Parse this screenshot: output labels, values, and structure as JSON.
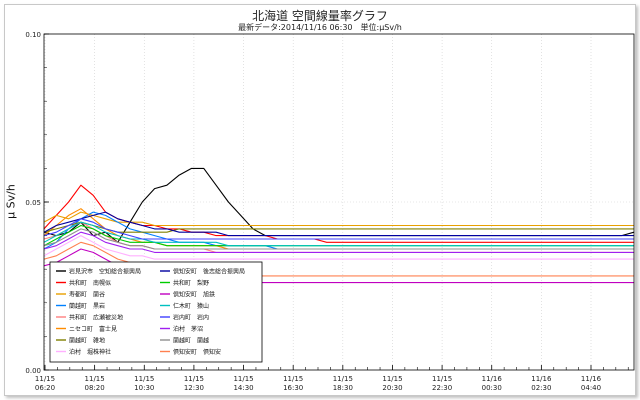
{
  "title": "北海道 空間線量率グラフ",
  "subtitle": "最新データ:2014/11/16 06:30　単位:μSv/h",
  "colors": {
    "axis": "#000000",
    "grid": "#cfcfcf",
    "background": "#ffffff"
  },
  "chart_data": {
    "type": "line",
    "ylabel": "μ Sv/h",
    "ylim": [
      0,
      0.1
    ],
    "yticks": [
      "0.00",
      "0.05",
      "0.10"
    ],
    "grid": true,
    "legend_placement": "lower-left",
    "x_tick_labels": [
      [
        "11/15",
        "06:20"
      ],
      [
        "11/15",
        "08:20"
      ],
      [
        "11/15",
        "10:30"
      ],
      [
        "11/15",
        "12:30"
      ],
      [
        "11/15",
        "14:30"
      ],
      [
        "11/15",
        "16:30"
      ],
      [
        "11/15",
        "18:30"
      ],
      [
        "11/15",
        "20:30"
      ],
      [
        "11/15",
        "22:30"
      ],
      [
        "11/16",
        "00:30"
      ],
      [
        "11/16",
        "02:30"
      ],
      [
        "11/16",
        "04:40"
      ]
    ],
    "series": [
      {
        "name": "岩見沢市　空知総合振興局",
        "color": "#000000",
        "values": [
          0.041,
          0.04,
          0.041,
          0.044,
          0.04,
          0.041,
          0.038,
          0.044,
          0.05,
          0.054,
          0.055,
          0.058,
          0.06,
          0.06,
          0.055,
          0.05,
          0.046,
          0.042,
          0.04,
          0.04,
          0.04,
          0.04,
          0.04,
          0.04,
          0.04,
          0.04,
          0.04,
          0.04,
          0.04,
          0.04,
          0.04,
          0.04,
          0.04,
          0.04,
          0.04,
          0.04,
          0.04,
          0.04,
          0.04,
          0.04,
          0.04,
          0.04,
          0.04,
          0.04,
          0.04,
          0.04,
          0.04,
          0.04,
          0.041
        ]
      },
      {
        "name": "共和町　南幌似",
        "color": "#ff0000",
        "values": [
          0.042,
          0.046,
          0.05,
          0.055,
          0.052,
          0.047,
          0.045,
          0.044,
          0.043,
          0.043,
          0.042,
          0.042,
          0.041,
          0.041,
          0.04,
          0.04,
          0.04,
          0.04,
          0.04,
          0.039,
          0.039,
          0.039,
          0.039,
          0.038,
          0.038,
          0.038,
          0.038,
          0.038,
          0.038,
          0.038,
          0.038,
          0.038,
          0.038,
          0.038,
          0.038,
          0.038,
          0.038,
          0.038,
          0.038,
          0.038,
          0.038,
          0.038,
          0.038,
          0.038,
          0.038,
          0.038,
          0.038,
          0.038,
          0.038
        ]
      },
      {
        "name": "寿都町　蘭谷",
        "color": "#e8a000",
        "values": [
          0.044,
          0.046,
          0.045,
          0.047,
          0.046,
          0.045,
          0.044,
          0.044,
          0.044,
          0.043,
          0.043,
          0.043,
          0.043,
          0.043,
          0.043,
          0.043,
          0.043,
          0.043,
          0.043,
          0.043,
          0.043,
          0.043,
          0.043,
          0.043,
          0.043,
          0.043,
          0.043,
          0.043,
          0.043,
          0.043,
          0.043,
          0.043,
          0.043,
          0.043,
          0.043,
          0.043,
          0.043,
          0.043,
          0.043,
          0.043,
          0.043,
          0.043,
          0.043,
          0.043,
          0.043,
          0.043,
          0.043,
          0.043,
          0.043
        ]
      },
      {
        "name": "蘭越町　黒岩",
        "color": "#0080ff",
        "values": [
          0.036,
          0.038,
          0.042,
          0.045,
          0.047,
          0.046,
          0.044,
          0.042,
          0.041,
          0.04,
          0.039,
          0.038,
          0.038,
          0.038,
          0.037,
          0.037,
          0.037,
          0.037,
          0.037,
          0.036,
          0.036,
          0.036,
          0.036,
          0.036,
          0.036,
          0.036,
          0.036,
          0.036,
          0.036,
          0.036,
          0.036,
          0.036,
          0.036,
          0.036,
          0.036,
          0.036,
          0.036,
          0.036,
          0.036,
          0.036,
          0.036,
          0.036,
          0.036,
          0.036,
          0.036,
          0.036,
          0.036,
          0.036,
          0.036
        ]
      },
      {
        "name": "共和町　広瀬被災地",
        "color": "#ff8080",
        "values": [
          0.039,
          0.04,
          0.042,
          0.044,
          0.042,
          0.04,
          0.038,
          0.037,
          0.037,
          0.036,
          0.036,
          0.036,
          0.036,
          0.036,
          0.035,
          0.035,
          0.035,
          0.035,
          0.035,
          0.035,
          0.035,
          0.035,
          0.035,
          0.035,
          0.035,
          0.035,
          0.035,
          0.035,
          0.035,
          0.035,
          0.035,
          0.035,
          0.035,
          0.035,
          0.035,
          0.035,
          0.035,
          0.035,
          0.035,
          0.035,
          0.035,
          0.035,
          0.035,
          0.035,
          0.035,
          0.035,
          0.035,
          0.035,
          0.035
        ]
      },
      {
        "name": "ニセコ町　富士見",
        "color": "#ff8c00",
        "values": [
          0.04,
          0.043,
          0.046,
          0.048,
          0.045,
          0.042,
          0.04,
          0.039,
          0.038,
          0.038,
          0.037,
          0.037,
          0.037,
          0.037,
          0.037,
          0.036,
          0.036,
          0.036,
          0.036,
          0.036,
          0.036,
          0.036,
          0.036,
          0.036,
          0.036,
          0.036,
          0.036,
          0.036,
          0.036,
          0.036,
          0.036,
          0.036,
          0.036,
          0.036,
          0.036,
          0.036,
          0.036,
          0.036,
          0.036,
          0.036,
          0.036,
          0.036,
          0.036,
          0.036,
          0.036,
          0.036,
          0.036,
          0.036,
          0.036
        ]
      },
      {
        "name": "蘭越町　雑地",
        "color": "#808000",
        "values": [
          0.041,
          0.042,
          0.043,
          0.044,
          0.043,
          0.042,
          0.041,
          0.041,
          0.041,
          0.041,
          0.041,
          0.042,
          0.042,
          0.042,
          0.042,
          0.042,
          0.042,
          0.042,
          0.042,
          0.042,
          0.042,
          0.042,
          0.042,
          0.042,
          0.042,
          0.042,
          0.042,
          0.042,
          0.042,
          0.042,
          0.042,
          0.042,
          0.042,
          0.042,
          0.042,
          0.042,
          0.042,
          0.042,
          0.042,
          0.042,
          0.042,
          0.042,
          0.042,
          0.042,
          0.042,
          0.042,
          0.042,
          0.042,
          0.042
        ]
      },
      {
        "name": "泊村　堀株神社",
        "color": "#ffb0ff",
        "values": [
          0.034,
          0.036,
          0.038,
          0.04,
          0.038,
          0.036,
          0.035,
          0.034,
          0.034,
          0.033,
          0.033,
          0.033,
          0.033,
          0.033,
          0.033,
          0.033,
          0.033,
          0.033,
          0.033,
          0.033,
          0.033,
          0.033,
          0.033,
          0.033,
          0.033,
          0.033,
          0.033,
          0.033,
          0.033,
          0.033,
          0.033,
          0.033,
          0.033,
          0.033,
          0.033,
          0.033,
          0.033,
          0.033,
          0.033,
          0.033,
          0.033,
          0.033,
          0.033,
          0.033,
          0.033,
          0.033,
          0.033,
          0.033,
          0.033
        ]
      },
      {
        "name": "倶知安町　後志総合振興局",
        "color": "#0000a0",
        "values": [
          0.041,
          0.043,
          0.044,
          0.045,
          0.046,
          0.047,
          0.045,
          0.044,
          0.043,
          0.042,
          0.042,
          0.041,
          0.041,
          0.041,
          0.041,
          0.04,
          0.04,
          0.04,
          0.04,
          0.04,
          0.04,
          0.04,
          0.04,
          0.04,
          0.04,
          0.04,
          0.04,
          0.04,
          0.04,
          0.04,
          0.04,
          0.04,
          0.04,
          0.04,
          0.04,
          0.04,
          0.04,
          0.04,
          0.04,
          0.04,
          0.04,
          0.04,
          0.04,
          0.04,
          0.04,
          0.04,
          0.04,
          0.04,
          0.04
        ]
      },
      {
        "name": "共和町　梨野",
        "color": "#00cc00",
        "values": [
          0.037,
          0.039,
          0.041,
          0.043,
          0.042,
          0.04,
          0.039,
          0.038,
          0.038,
          0.038,
          0.037,
          0.037,
          0.037,
          0.037,
          0.037,
          0.037,
          0.037,
          0.037,
          0.037,
          0.037,
          0.037,
          0.037,
          0.037,
          0.037,
          0.037,
          0.037,
          0.037,
          0.037,
          0.037,
          0.037,
          0.037,
          0.037,
          0.037,
          0.037,
          0.037,
          0.037,
          0.037,
          0.037,
          0.037,
          0.037,
          0.037,
          0.037,
          0.037,
          0.037,
          0.037,
          0.037,
          0.037,
          0.037,
          0.037
        ]
      },
      {
        "name": "倶知安町　旭鉄",
        "color": "#c000c0",
        "values": [
          0.031,
          0.032,
          0.034,
          0.036,
          0.035,
          0.033,
          0.031,
          0.03,
          0.029,
          0.028,
          0.028,
          0.027,
          0.027,
          0.026,
          0.026,
          0.026,
          0.026,
          0.026,
          0.026,
          0.026,
          0.026,
          0.026,
          0.026,
          0.026,
          0.026,
          0.026,
          0.026,
          0.026,
          0.026,
          0.026,
          0.026,
          0.026,
          0.026,
          0.026,
          0.026,
          0.026,
          0.026,
          0.026,
          0.026,
          0.026,
          0.026,
          0.026,
          0.026,
          0.026,
          0.026,
          0.026,
          0.026,
          0.026,
          0.026
        ]
      },
      {
        "name": "仁木町　猿山",
        "color": "#00c0c0",
        "values": [
          0.038,
          0.04,
          0.042,
          0.044,
          0.043,
          0.041,
          0.04,
          0.039,
          0.039,
          0.038,
          0.038,
          0.038,
          0.038,
          0.038,
          0.038,
          0.037,
          0.037,
          0.037,
          0.037,
          0.037,
          0.037,
          0.037,
          0.037,
          0.037,
          0.037,
          0.037,
          0.037,
          0.037,
          0.037,
          0.037,
          0.037,
          0.037,
          0.037,
          0.037,
          0.037,
          0.037,
          0.037,
          0.037,
          0.037,
          0.037,
          0.037,
          0.037,
          0.037,
          0.037,
          0.037,
          0.037,
          0.037,
          0.037,
          0.037
        ]
      },
      {
        "name": "岩内町　岩内",
        "color": "#4040ff",
        "values": [
          0.04,
          0.041,
          0.043,
          0.045,
          0.044,
          0.042,
          0.041,
          0.04,
          0.039,
          0.039,
          0.039,
          0.039,
          0.039,
          0.039,
          0.039,
          0.039,
          0.039,
          0.039,
          0.039,
          0.039,
          0.039,
          0.039,
          0.039,
          0.039,
          0.039,
          0.039,
          0.039,
          0.039,
          0.039,
          0.039,
          0.039,
          0.039,
          0.039,
          0.039,
          0.039,
          0.039,
          0.039,
          0.039,
          0.039,
          0.039,
          0.039,
          0.039,
          0.039,
          0.039,
          0.039,
          0.039,
          0.039,
          0.039,
          0.039
        ]
      },
      {
        "name": "泊村　茅沼",
        "color": "#a020f0",
        "values": [
          0.036,
          0.037,
          0.039,
          0.041,
          0.04,
          0.038,
          0.037,
          0.036,
          0.036,
          0.035,
          0.035,
          0.035,
          0.035,
          0.035,
          0.035,
          0.035,
          0.035,
          0.035,
          0.035,
          0.035,
          0.035,
          0.035,
          0.035,
          0.035,
          0.035,
          0.035,
          0.035,
          0.035,
          0.035,
          0.035,
          0.035,
          0.035,
          0.035,
          0.035,
          0.035,
          0.035,
          0.035,
          0.035,
          0.035,
          0.035,
          0.035,
          0.035,
          0.035,
          0.035,
          0.035,
          0.035,
          0.035,
          0.035,
          0.035
        ]
      },
      {
        "name": "蘭越町　蘭越",
        "color": "#909090",
        "values": [
          0.037,
          0.038,
          0.04,
          0.042,
          0.041,
          0.039,
          0.038,
          0.037,
          0.037,
          0.036,
          0.036,
          0.036,
          0.036,
          0.036,
          0.036,
          0.036,
          0.036,
          0.036,
          0.036,
          0.036,
          0.036,
          0.036,
          0.036,
          0.036,
          0.036,
          0.036,
          0.036,
          0.036,
          0.036,
          0.036,
          0.036,
          0.036,
          0.036,
          0.036,
          0.036,
          0.036,
          0.036,
          0.036,
          0.036,
          0.036,
          0.036,
          0.036,
          0.036,
          0.036,
          0.036,
          0.036,
          0.036,
          0.036,
          0.036
        ]
      },
      {
        "name": "倶知安町　倶知安",
        "color": "#ff8050",
        "values": [
          0.033,
          0.034,
          0.036,
          0.038,
          0.037,
          0.035,
          0.033,
          0.032,
          0.031,
          0.03,
          0.03,
          0.029,
          0.029,
          0.028,
          0.028,
          0.028,
          0.028,
          0.028,
          0.028,
          0.028,
          0.028,
          0.028,
          0.028,
          0.028,
          0.028,
          0.028,
          0.028,
          0.028,
          0.028,
          0.028,
          0.028,
          0.028,
          0.028,
          0.028,
          0.028,
          0.028,
          0.028,
          0.028,
          0.028,
          0.028,
          0.028,
          0.028,
          0.028,
          0.028,
          0.028,
          0.028,
          0.028,
          0.028,
          0.028
        ]
      }
    ]
  }
}
